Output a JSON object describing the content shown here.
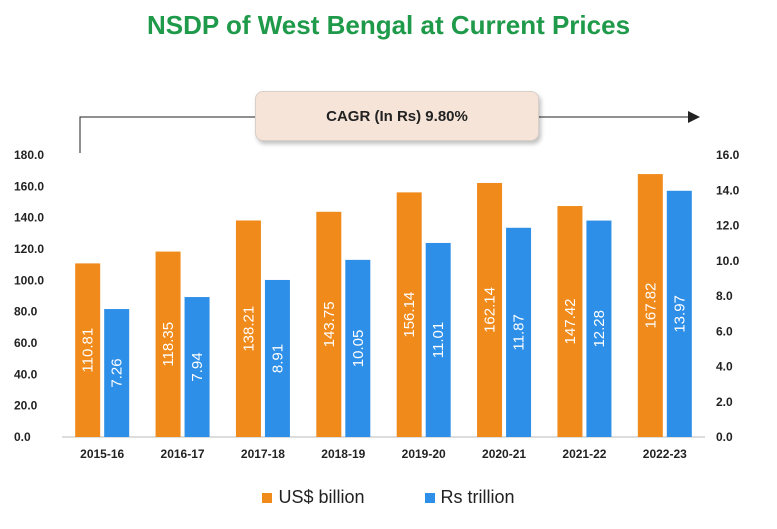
{
  "chart_data": {
    "type": "bar",
    "title": "NSDP of West Bengal at Current Prices",
    "annotation": "CAGR (In Rs) 9.80%",
    "categories": [
      "2015-16",
      "2016-17",
      "2017-18",
      "2018-19",
      "2019-20",
      "2020-21",
      "2021-22",
      "2022-23"
    ],
    "series": [
      {
        "name": "US$ billion",
        "axis": "left",
        "color": "#f08a1a",
        "values": [
          110.81,
          118.35,
          138.21,
          143.75,
          156.14,
          162.14,
          147.42,
          167.82
        ],
        "labels": [
          "110.81",
          "118.35",
          "138.21",
          "143.75",
          "156.14",
          "162.14",
          "147.42",
          "167.82"
        ]
      },
      {
        "name": "Rs trillion",
        "axis": "right",
        "color": "#2e8fe8",
        "values": [
          7.26,
          7.94,
          8.91,
          10.05,
          11.01,
          11.87,
          12.28,
          13.97
        ],
        "labels": [
          "7.26",
          "7.94",
          "8.91",
          "10.05",
          "11.01",
          "11.87",
          "12.28",
          "13.97"
        ]
      }
    ],
    "ylim_left": [
      0,
      180
    ],
    "ylim_right": [
      0,
      16
    ],
    "yticks_left": [
      "0.0",
      "20.0",
      "40.0",
      "60.0",
      "80.0",
      "100.0",
      "120.0",
      "140.0",
      "160.0",
      "180.0"
    ],
    "yticks_right": [
      "0.0",
      "2.0",
      "4.0",
      "6.0",
      "8.0",
      "10.0",
      "12.0",
      "14.0",
      "16.0"
    ],
    "grid": false,
    "legend": "bottom"
  }
}
